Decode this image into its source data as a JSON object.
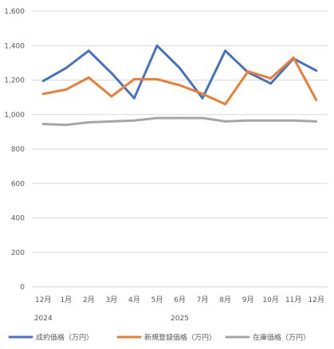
{
  "chart_data": {
    "type": "line",
    "categories": [
      "12月",
      "1月",
      "2月",
      "3月",
      "4月",
      "5月",
      "6月",
      "7月",
      "8月",
      "9月",
      "10月",
      "11月",
      "12月"
    ],
    "year_labels": [
      {
        "label": "2024",
        "category_index": 0
      },
      {
        "label": "2025",
        "category_index": 6
      }
    ],
    "ylim": [
      0,
      1600
    ],
    "yticks": [
      0,
      200,
      400,
      600,
      800,
      1000,
      1200,
      1400,
      1600
    ],
    "ytick_labels": [
      "0",
      "200",
      "400",
      "600",
      "800",
      "1,000",
      "1,200",
      "1,400",
      "1,600"
    ],
    "grid": true,
    "legend_position": "bottom",
    "series": [
      {
        "name": "成約価格（万円）",
        "color": "#4472C4",
        "values": [
          1195,
          1270,
          1370,
          1240,
          1095,
          1400,
          1270,
          1095,
          1370,
          1245,
          1180,
          1325,
          1255
        ]
      },
      {
        "name": "新規登録価格（万円）",
        "color": "#ED7D31",
        "values": [
          1120,
          1145,
          1215,
          1105,
          1205,
          1205,
          1170,
          1120,
          1060,
          1250,
          1210,
          1330,
          1085
        ]
      },
      {
        "name": "在庫価格（万円）",
        "color": "#A5A5A5",
        "values": [
          945,
          940,
          955,
          960,
          965,
          980,
          980,
          980,
          960,
          965,
          965,
          965,
          960
        ]
      }
    ]
  }
}
